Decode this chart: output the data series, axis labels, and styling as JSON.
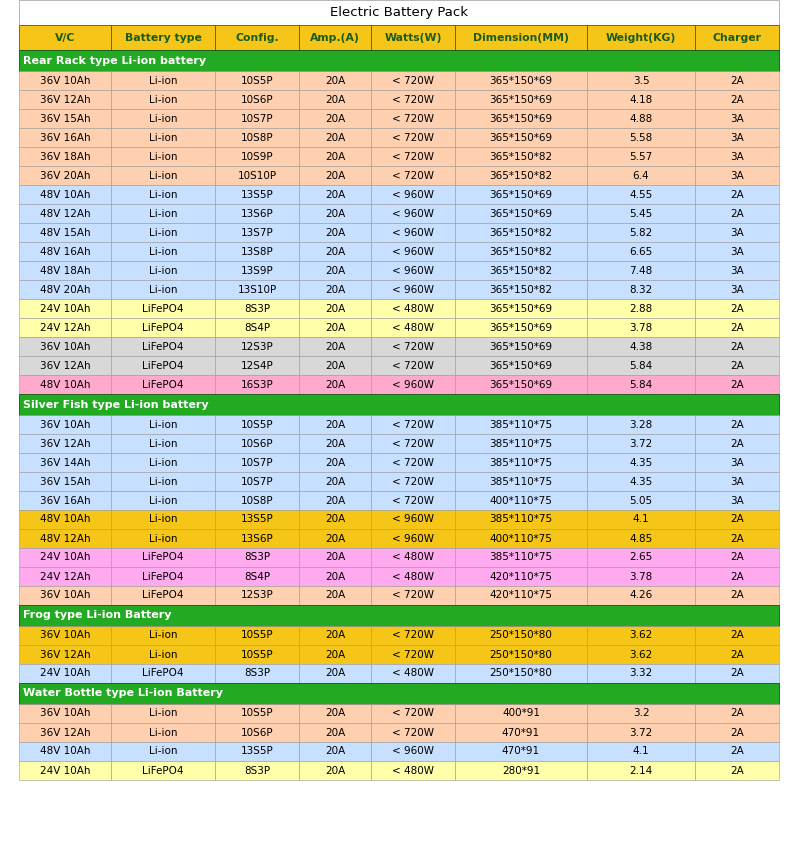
{
  "title": "Electric Battery Pack",
  "headers": [
    "V/C",
    "Battery type",
    "Config.",
    "Amp.(A)",
    "Watts(W)",
    "Dimension(MM)",
    "Weight(KG)",
    "Charger"
  ],
  "sections": [
    {
      "label": "Rear Rack type Li-ion battery",
      "rows": [
        {
          "vc": "36V 10Ah",
          "bt": "Li-ion",
          "cfg": "10S5P",
          "amp": "20A",
          "watt": "< 720W",
          "dim": "365*150*69",
          "wt": "3.5",
          "chg": "2A",
          "bg": "#ffd0b0"
        },
        {
          "vc": "36V 12Ah",
          "bt": "Li-ion",
          "cfg": "10S6P",
          "amp": "20A",
          "watt": "< 720W",
          "dim": "365*150*69",
          "wt": "4.18",
          "chg": "2A",
          "bg": "#ffd0b0"
        },
        {
          "vc": "36V 15Ah",
          "bt": "Li-ion",
          "cfg": "10S7P",
          "amp": "20A",
          "watt": "< 720W",
          "dim": "365*150*69",
          "wt": "4.88",
          "chg": "3A",
          "bg": "#ffd0b0"
        },
        {
          "vc": "36V 16Ah",
          "bt": "Li-ion",
          "cfg": "10S8P",
          "amp": "20A",
          "watt": "< 720W",
          "dim": "365*150*69",
          "wt": "5.58",
          "chg": "3A",
          "bg": "#ffd0b0"
        },
        {
          "vc": "36V 18Ah",
          "bt": "Li-ion",
          "cfg": "10S9P",
          "amp": "20A",
          "watt": "< 720W",
          "dim": "365*150*82",
          "wt": "5.57",
          "chg": "3A",
          "bg": "#ffd0b0"
        },
        {
          "vc": "36V 20Ah",
          "bt": "Li-ion",
          "cfg": "10S10P",
          "amp": "20A",
          "watt": "< 720W",
          "dim": "365*150*82",
          "wt": "6.4",
          "chg": "3A",
          "bg": "#ffd0b0"
        },
        {
          "vc": "48V 10Ah",
          "bt": "Li-ion",
          "cfg": "13S5P",
          "amp": "20A",
          "watt": "< 960W",
          "dim": "365*150*69",
          "wt": "4.55",
          "chg": "2A",
          "bg": "#c8e0ff"
        },
        {
          "vc": "48V 12Ah",
          "bt": "Li-ion",
          "cfg": "13S6P",
          "amp": "20A",
          "watt": "< 960W",
          "dim": "365*150*69",
          "wt": "5.45",
          "chg": "2A",
          "bg": "#c8e0ff"
        },
        {
          "vc": "48V 15Ah",
          "bt": "Li-ion",
          "cfg": "13S7P",
          "amp": "20A",
          "watt": "< 960W",
          "dim": "365*150*82",
          "wt": "5.82",
          "chg": "3A",
          "bg": "#c8e0ff"
        },
        {
          "vc": "48V 16Ah",
          "bt": "Li-ion",
          "cfg": "13S8P",
          "amp": "20A",
          "watt": "< 960W",
          "dim": "365*150*82",
          "wt": "6.65",
          "chg": "3A",
          "bg": "#c8e0ff"
        },
        {
          "vc": "48V 18Ah",
          "bt": "Li-ion",
          "cfg": "13S9P",
          "amp": "20A",
          "watt": "< 960W",
          "dim": "365*150*82",
          "wt": "7.48",
          "chg": "3A",
          "bg": "#c8e0ff"
        },
        {
          "vc": "48V 20Ah",
          "bt": "Li-ion",
          "cfg": "13S10P",
          "amp": "20A",
          "watt": "< 960W",
          "dim": "365*150*82",
          "wt": "8.32",
          "chg": "3A",
          "bg": "#c8e0ff"
        },
        {
          "vc": "24V 10Ah",
          "bt": "LiFePO4",
          "cfg": "8S3P",
          "amp": "20A",
          "watt": "< 480W",
          "dim": "365*150*69",
          "wt": "2.88",
          "chg": "2A",
          "bg": "#ffffaa"
        },
        {
          "vc": "24V 12Ah",
          "bt": "LiFePO4",
          "cfg": "8S4P",
          "amp": "20A",
          "watt": "< 480W",
          "dim": "365*150*69",
          "wt": "3.78",
          "chg": "2A",
          "bg": "#ffffaa"
        },
        {
          "vc": "36V 10Ah",
          "bt": "LiFePO4",
          "cfg": "12S3P",
          "amp": "20A",
          "watt": "< 720W",
          "dim": "365*150*69",
          "wt": "4.38",
          "chg": "2A",
          "bg": "#d8d8d8"
        },
        {
          "vc": "36V 12Ah",
          "bt": "LiFePO4",
          "cfg": "12S4P",
          "amp": "20A",
          "watt": "< 720W",
          "dim": "365*150*69",
          "wt": "5.84",
          "chg": "2A",
          "bg": "#d8d8d8"
        },
        {
          "vc": "48V 10Ah",
          "bt": "LiFePO4",
          "cfg": "16S3P",
          "amp": "20A",
          "watt": "< 960W",
          "dim": "365*150*69",
          "wt": "5.84",
          "chg": "2A",
          "bg": "#ffaacc"
        }
      ]
    },
    {
      "label": "Silver Fish type Li-ion battery",
      "rows": [
        {
          "vc": "36V 10Ah",
          "bt": "Li-ion",
          "cfg": "10S5P",
          "amp": "20A",
          "watt": "< 720W",
          "dim": "385*110*75",
          "wt": "3.28",
          "chg": "2A",
          "bg": "#c8e0ff"
        },
        {
          "vc": "36V 12Ah",
          "bt": "Li-ion",
          "cfg": "10S6P",
          "amp": "20A",
          "watt": "< 720W",
          "dim": "385*110*75",
          "wt": "3.72",
          "chg": "2A",
          "bg": "#c8e0ff"
        },
        {
          "vc": "36V 14Ah",
          "bt": "Li-ion",
          "cfg": "10S7P",
          "amp": "20A",
          "watt": "< 720W",
          "dim": "385*110*75",
          "wt": "4.35",
          "chg": "3A",
          "bg": "#c8e0ff"
        },
        {
          "vc": "36V 15Ah",
          "bt": "Li-ion",
          "cfg": "10S7P",
          "amp": "20A",
          "watt": "< 720W",
          "dim": "385*110*75",
          "wt": "4.35",
          "chg": "3A",
          "bg": "#c8e0ff"
        },
        {
          "vc": "36V 16Ah",
          "bt": "Li-ion",
          "cfg": "10S8P",
          "amp": "20A",
          "watt": "< 720W",
          "dim": "400*110*75",
          "wt": "5.05",
          "chg": "3A",
          "bg": "#c8e0ff"
        },
        {
          "vc": "48V 10Ah",
          "bt": "Li-ion",
          "cfg": "13S5P",
          "amp": "20A",
          "watt": "< 960W",
          "dim": "385*110*75",
          "wt": "4.1",
          "chg": "2A",
          "bg": "#F5C518"
        },
        {
          "vc": "48V 12Ah",
          "bt": "Li-ion",
          "cfg": "13S6P",
          "amp": "20A",
          "watt": "< 960W",
          "dim": "400*110*75",
          "wt": "4.85",
          "chg": "2A",
          "bg": "#F5C518"
        },
        {
          "vc": "24V 10Ah",
          "bt": "LiFePO4",
          "cfg": "8S3P",
          "amp": "20A",
          "watt": "< 480W",
          "dim": "385*110*75",
          "wt": "2.65",
          "chg": "2A",
          "bg": "#ffaaee"
        },
        {
          "vc": "24V 12Ah",
          "bt": "LiFePO4",
          "cfg": "8S4P",
          "amp": "20A",
          "watt": "< 480W",
          "dim": "420*110*75",
          "wt": "3.78",
          "chg": "2A",
          "bg": "#ffaaee"
        },
        {
          "vc": "36V 10Ah",
          "bt": "LiFePO4",
          "cfg": "12S3P",
          "amp": "20A",
          "watt": "< 720W",
          "dim": "420*110*75",
          "wt": "4.26",
          "chg": "2A",
          "bg": "#ffd0b0"
        }
      ]
    },
    {
      "label": "Frog type Li-ion Battery",
      "rows": [
        {
          "vc": "36V 10Ah",
          "bt": "Li-ion",
          "cfg": "10S5P",
          "amp": "20A",
          "watt": "< 720W",
          "dim": "250*150*80",
          "wt": "3.62",
          "chg": "2A",
          "bg": "#F5C518"
        },
        {
          "vc": "36V 12Ah",
          "bt": "Li-ion",
          "cfg": "10S5P",
          "amp": "20A",
          "watt": "< 720W",
          "dim": "250*150*80",
          "wt": "3.62",
          "chg": "2A",
          "bg": "#F5C518"
        },
        {
          "vc": "24V 10Ah",
          "bt": "LiFePO4",
          "cfg": "8S3P",
          "amp": "20A",
          "watt": "< 480W",
          "dim": "250*150*80",
          "wt": "3.32",
          "chg": "2A",
          "bg": "#c8e0ff"
        }
      ]
    },
    {
      "label": "Water Bottle type Li-ion Battery",
      "rows": [
        {
          "vc": "36V 10Ah",
          "bt": "Li-ion",
          "cfg": "10S5P",
          "amp": "20A",
          "watt": "< 720W",
          "dim": "400*91",
          "wt": "3.2",
          "chg": "2A",
          "bg": "#ffd0b0"
        },
        {
          "vc": "36V 12Ah",
          "bt": "Li-ion",
          "cfg": "10S6P",
          "amp": "20A",
          "watt": "< 720W",
          "dim": "470*91",
          "wt": "3.72",
          "chg": "2A",
          "bg": "#ffd0b0"
        },
        {
          "vc": "48V 10Ah",
          "bt": "Li-ion",
          "cfg": "13S5P",
          "amp": "20A",
          "watt": "< 960W",
          "dim": "470*91",
          "wt": "4.1",
          "chg": "2A",
          "bg": "#c8e0ff"
        },
        {
          "vc": "24V 10Ah",
          "bt": "LiFePO4",
          "cfg": "8S3P",
          "amp": "20A",
          "watt": "< 480W",
          "dim": "280*91",
          "wt": "2.14",
          "chg": "2A",
          "bg": "#ffffaa"
        }
      ]
    }
  ]
}
